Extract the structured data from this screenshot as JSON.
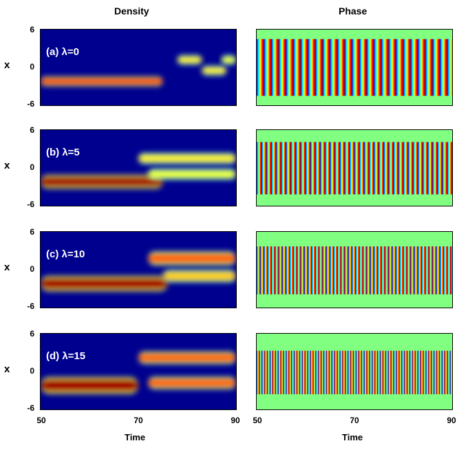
{
  "column_titles": {
    "left": "Density",
    "right": "Phase"
  },
  "panels": [
    {
      "label": "(a) λ=0"
    },
    {
      "label": "(b) λ=5"
    },
    {
      "label": "(c) λ=10"
    },
    {
      "label": "(d) λ=15"
    }
  ],
  "axes": {
    "y_label": "x",
    "y_ticks": [
      "6",
      "0",
      "-6"
    ],
    "x_label": "Time",
    "x_ticks": [
      "50",
      "70",
      "90"
    ]
  },
  "colors": {
    "density_background": "#00008f",
    "phase_background": "#80ff80"
  },
  "chart_data": {
    "type": "heatmap",
    "title": "",
    "columns": [
      "Density",
      "Phase"
    ],
    "xlabel": "Time",
    "ylabel": "x",
    "xlim": [
      50,
      90
    ],
    "ylim": [
      -6,
      6
    ],
    "x_ticks": [
      50,
      70,
      90
    ],
    "y_ticks": [
      6,
      0,
      -6
    ],
    "colormap": "jet",
    "series": [
      {
        "name": "(a) λ=0",
        "density_blobs": [
          {
            "t_start": 50,
            "t_end": 75,
            "x": -2.2,
            "width": 0.6,
            "intensity": 0.85
          },
          {
            "t_start": 78,
            "t_end": 83,
            "x": 1.2,
            "width": 0.6,
            "intensity": 0.55
          },
          {
            "t_start": 83,
            "t_end": 88,
            "x": -0.5,
            "width": 0.6,
            "intensity": 0.55
          },
          {
            "t_start": 87,
            "t_end": 90,
            "x": 1.2,
            "width": 0.6,
            "intensity": 0.5
          }
        ],
        "phase_stripe_period": 1.5
      },
      {
        "name": "(b) λ=5",
        "density_blobs": [
          {
            "t_start": 50,
            "t_end": 75,
            "x": -2.2,
            "width": 0.9,
            "intensity": 1.0
          },
          {
            "t_start": 70,
            "t_end": 90,
            "x": 1.5,
            "width": 0.7,
            "intensity": 0.55
          },
          {
            "t_start": 72,
            "t_end": 90,
            "x": -1.0,
            "width": 0.7,
            "intensity": 0.5
          }
        ],
        "phase_stripe_period": 1.0
      },
      {
        "name": "(c) λ=10",
        "density_blobs": [
          {
            "t_start": 50,
            "t_end": 76,
            "x": -2.2,
            "width": 1.0,
            "intensity": 1.0
          },
          {
            "t_start": 72,
            "t_end": 90,
            "x": 1.8,
            "width": 0.9,
            "intensity": 0.75
          },
          {
            "t_start": 75,
            "t_end": 90,
            "x": -1.0,
            "width": 0.8,
            "intensity": 0.6
          }
        ],
        "phase_stripe_period": 0.75
      },
      {
        "name": "(d) λ=15",
        "density_blobs": [
          {
            "t_start": 50,
            "t_end": 70,
            "x": -2.2,
            "width": 1.1,
            "intensity": 1.0
          },
          {
            "t_start": 70,
            "t_end": 90,
            "x": 2.2,
            "width": 0.8,
            "intensity": 0.75
          },
          {
            "t_start": 72,
            "t_end": 90,
            "x": -1.8,
            "width": 0.8,
            "intensity": 0.75
          }
        ],
        "phase_stripe_period": 0.55
      }
    ]
  }
}
